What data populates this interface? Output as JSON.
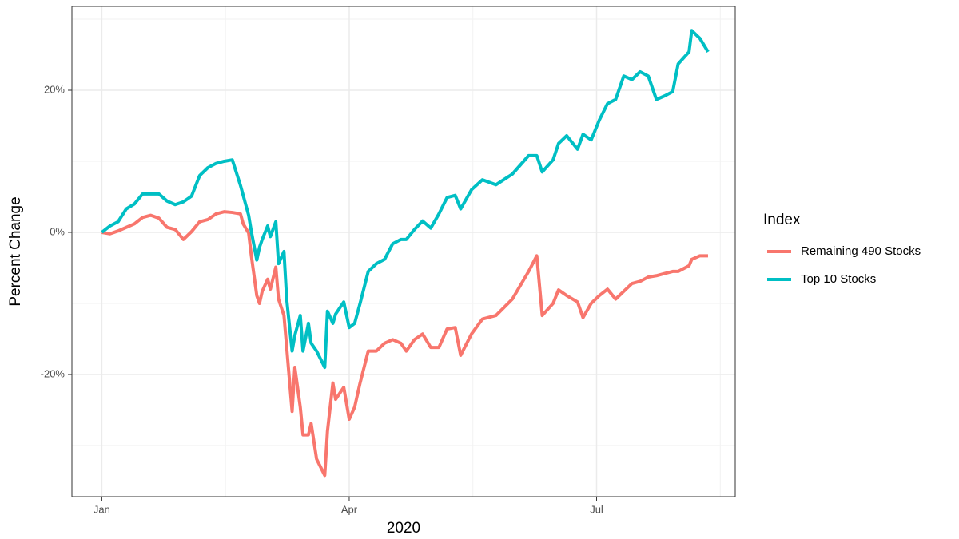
{
  "chart_data": {
    "type": "line",
    "x_label": "2020",
    "y_label": "Percent Change",
    "legend_title": "Index",
    "x": [
      0,
      3,
      6,
      9,
      12,
      15,
      18,
      21,
      24,
      27,
      30,
      33,
      36,
      39,
      42,
      45,
      48,
      51,
      52,
      54,
      55,
      57,
      58,
      59,
      61,
      62,
      64,
      65,
      67,
      68,
      70,
      71,
      73,
      74,
      76,
      77,
      79,
      82,
      83,
      85,
      86,
      89,
      91,
      93,
      95,
      98,
      101,
      104,
      107,
      110,
      112,
      115,
      118,
      121,
      124,
      127,
      130,
      132,
      136,
      140,
      145,
      151,
      157,
      160,
      162,
      166,
      168,
      171,
      175,
      177,
      180,
      183,
      186,
      189,
      192,
      195,
      198,
      201,
      204,
      207,
      210,
      212,
      216,
      217,
      220,
      223
    ],
    "series": [
      {
        "name": "Remaining 490 Stocks",
        "color": "#F8766D",
        "values": [
          0,
          -0.2,
          0.2,
          0.7,
          1.2,
          2.1,
          2.4,
          2.0,
          0.7,
          0.4,
          -1.0,
          0.1,
          1.5,
          1.8,
          2.6,
          2.9,
          2.8,
          2.6,
          1.2,
          -0.1,
          -3.3,
          -8.9,
          -10.0,
          -8.3,
          -6.6,
          -8.0,
          -4.9,
          -9.4,
          -11.7,
          -16.2,
          -25.2,
          -19.0,
          -24.6,
          -28.5,
          -28.5,
          -26.9,
          -31.9,
          -34.2,
          -28.0,
          -21.2,
          -23.5,
          -21.8,
          -26.3,
          -24.6,
          -21.2,
          -16.7,
          -16.7,
          -15.6,
          -15.1,
          -15.6,
          -16.7,
          -15.1,
          -14.3,
          -16.2,
          -16.2,
          -13.6,
          -13.4,
          -17.3,
          -14.3,
          -12.2,
          -11.7,
          -9.4,
          -5.5,
          -3.3,
          -11.7,
          -10.0,
          -8.1,
          -8.9,
          -9.8,
          -12.0,
          -10.0,
          -8.9,
          -8.0,
          -9.4,
          -8.3,
          -7.2,
          -6.9,
          -6.3,
          -6.1,
          -5.8,
          -5.5,
          -5.5,
          -4.7,
          -3.8,
          -3.3,
          -3.3
        ]
      },
      {
        "name": "Top 10 Stocks",
        "color": "#00BFC4",
        "values": [
          0,
          0.9,
          1.5,
          3.3,
          4.0,
          5.4,
          5.4,
          5.4,
          4.4,
          3.9,
          4.3,
          5.1,
          8.0,
          9.1,
          9.7,
          10.0,
          10.2,
          6.6,
          5.2,
          2.4,
          0.1,
          -3.9,
          -2.1,
          -1.0,
          0.9,
          -0.6,
          1.5,
          -4.4,
          -2.7,
          -9.4,
          -16.7,
          -14.5,
          -11.7,
          -16.7,
          -12.8,
          -15.6,
          -16.7,
          -19.0,
          -11.1,
          -12.8,
          -11.5,
          -9.8,
          -13.4,
          -12.8,
          -10.0,
          -5.5,
          -4.4,
          -3.8,
          -1.6,
          -1.0,
          -1.0,
          0.4,
          1.6,
          0.6,
          2.6,
          4.9,
          5.2,
          3.3,
          6.0,
          7.4,
          6.7,
          8.2,
          10.8,
          10.8,
          8.5,
          10.2,
          12.5,
          13.6,
          11.7,
          13.8,
          13.0,
          15.8,
          18.1,
          18.7,
          22.0,
          21.5,
          22.6,
          22.0,
          18.7,
          19.2,
          19.8,
          23.7,
          25.4,
          28.4,
          27.3,
          25.4
        ]
      }
    ],
    "xlim": [
      -11,
      233
    ],
    "xticks": [
      {
        "value": 0,
        "label": "Jan"
      },
      {
        "value": 91,
        "label": "Apr"
      },
      {
        "value": 182,
        "label": "Jul"
      }
    ],
    "ylim": [
      -37.2,
      31.8
    ],
    "yticks": [
      {
        "value": -20,
        "label": "-20%"
      },
      {
        "value": 0,
        "label": "0%"
      },
      {
        "value": 20,
        "label": "20%"
      }
    ],
    "grid": true,
    "legend": "right"
  }
}
